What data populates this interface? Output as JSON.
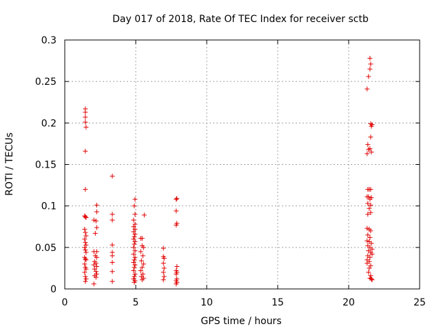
{
  "chart_data": {
    "type": "scatter",
    "title": "Day 017 of 2018, Rate Of TEC Index for receiver sctb",
    "xlabel": "GPS time / hours",
    "ylabel": "ROTI / TECUs",
    "xlim": [
      0,
      25
    ],
    "ylim": [
      0,
      0.3
    ],
    "xticks": [
      0,
      5,
      10,
      15,
      20,
      25
    ],
    "yticks": [
      0,
      0.05,
      0.1,
      0.15,
      0.2,
      0.25,
      0.3
    ],
    "xtick_labels": [
      "0",
      "5",
      "10",
      "15",
      "20",
      "25"
    ],
    "ytick_labels": [
      "0",
      "0.05",
      "0.1",
      "0.15",
      "0.2",
      "0.25",
      "0.3"
    ],
    "grid": true,
    "marker": "plus",
    "color": "#e00000",
    "series": [
      {
        "name": "ROTI",
        "points": [
          [
            1.45,
            0.217
          ],
          [
            1.45,
            0.213
          ],
          [
            1.45,
            0.207
          ],
          [
            1.45,
            0.201
          ],
          [
            1.5,
            0.195
          ],
          [
            1.45,
            0.166
          ],
          [
            1.45,
            0.12
          ],
          [
            1.4,
            0.088
          ],
          [
            1.45,
            0.087
          ],
          [
            1.5,
            0.086
          ],
          [
            1.4,
            0.072
          ],
          [
            1.45,
            0.068
          ],
          [
            1.5,
            0.064
          ],
          [
            1.4,
            0.06
          ],
          [
            1.45,
            0.056
          ],
          [
            1.5,
            0.053
          ],
          [
            1.4,
            0.05
          ],
          [
            1.45,
            0.047
          ],
          [
            1.5,
            0.044
          ],
          [
            1.4,
            0.038
          ],
          [
            1.45,
            0.036
          ],
          [
            1.5,
            0.035
          ],
          [
            1.4,
            0.03
          ],
          [
            1.45,
            0.026
          ],
          [
            1.5,
            0.024
          ],
          [
            1.4,
            0.02
          ],
          [
            1.45,
            0.015
          ],
          [
            1.5,
            0.012
          ],
          [
            1.45,
            0.009
          ],
          [
            2.25,
            0.101
          ],
          [
            2.25,
            0.093
          ],
          [
            2.05,
            0.083
          ],
          [
            2.2,
            0.082
          ],
          [
            2.25,
            0.074
          ],
          [
            2.15,
            0.067
          ],
          [
            2.05,
            0.045
          ],
          [
            2.25,
            0.045
          ],
          [
            2.15,
            0.04
          ],
          [
            2.25,
            0.038
          ],
          [
            2.1,
            0.033
          ],
          [
            2.2,
            0.031
          ],
          [
            2.05,
            0.029
          ],
          [
            2.25,
            0.027
          ],
          [
            2.1,
            0.024
          ],
          [
            2.2,
            0.021
          ],
          [
            2.25,
            0.018
          ],
          [
            2.1,
            0.016
          ],
          [
            2.2,
            0.014
          ],
          [
            2.05,
            0.006
          ],
          [
            3.35,
            0.136
          ],
          [
            3.35,
            0.09
          ],
          [
            3.35,
            0.083
          ],
          [
            3.35,
            0.053
          ],
          [
            3.35,
            0.044
          ],
          [
            3.35,
            0.04
          ],
          [
            3.35,
            0.032
          ],
          [
            3.35,
            0.021
          ],
          [
            3.35,
            0.009
          ],
          [
            4.95,
            0.108
          ],
          [
            4.9,
            0.1
          ],
          [
            4.95,
            0.09
          ],
          [
            4.85,
            0.083
          ],
          [
            4.95,
            0.078
          ],
          [
            4.85,
            0.075
          ],
          [
            4.95,
            0.072
          ],
          [
            4.85,
            0.069
          ],
          [
            4.95,
            0.066
          ],
          [
            4.9,
            0.063
          ],
          [
            4.85,
            0.06
          ],
          [
            4.95,
            0.057
          ],
          [
            4.9,
            0.054
          ],
          [
            4.85,
            0.05
          ],
          [
            4.95,
            0.046
          ],
          [
            4.85,
            0.042
          ],
          [
            4.95,
            0.038
          ],
          [
            4.9,
            0.035
          ],
          [
            4.85,
            0.032
          ],
          [
            4.95,
            0.029
          ],
          [
            4.9,
            0.026
          ],
          [
            4.85,
            0.022
          ],
          [
            4.95,
            0.018
          ],
          [
            4.9,
            0.015
          ],
          [
            4.85,
            0.012
          ],
          [
            4.95,
            0.01
          ],
          [
            4.9,
            0.008
          ],
          [
            5.45,
            0.061
          ],
          [
            5.35,
            0.061
          ],
          [
            5.6,
            0.089
          ],
          [
            5.45,
            0.052
          ],
          [
            5.55,
            0.05
          ],
          [
            5.35,
            0.045
          ],
          [
            5.5,
            0.04
          ],
          [
            5.4,
            0.034
          ],
          [
            5.55,
            0.03
          ],
          [
            5.45,
            0.026
          ],
          [
            5.35,
            0.022
          ],
          [
            5.5,
            0.018
          ],
          [
            5.4,
            0.015
          ],
          [
            5.55,
            0.013
          ],
          [
            5.45,
            0.011
          ],
          [
            6.95,
            0.049
          ],
          [
            6.95,
            0.039
          ],
          [
            7.0,
            0.037
          ],
          [
            6.95,
            0.031
          ],
          [
            7.0,
            0.025
          ],
          [
            6.95,
            0.02
          ],
          [
            7.0,
            0.015
          ],
          [
            6.95,
            0.011
          ],
          [
            7.9,
            0.109
          ],
          [
            7.85,
            0.108
          ],
          [
            7.85,
            0.094
          ],
          [
            7.9,
            0.079
          ],
          [
            7.85,
            0.077
          ],
          [
            7.9,
            0.027
          ],
          [
            7.85,
            0.022
          ],
          [
            7.9,
            0.02
          ],
          [
            7.85,
            0.018
          ],
          [
            7.9,
            0.012
          ],
          [
            7.85,
            0.01
          ],
          [
            7.9,
            0.008
          ],
          [
            7.85,
            0.006
          ],
          [
            21.5,
            0.278
          ],
          [
            21.55,
            0.271
          ],
          [
            21.5,
            0.265
          ],
          [
            21.4,
            0.256
          ],
          [
            21.3,
            0.241
          ],
          [
            21.55,
            0.199
          ],
          [
            21.65,
            0.198
          ],
          [
            21.6,
            0.196
          ],
          [
            21.55,
            0.183
          ],
          [
            21.35,
            0.174
          ],
          [
            21.4,
            0.168
          ],
          [
            21.3,
            0.163
          ],
          [
            21.6,
            0.165
          ],
          [
            21.5,
            0.169
          ],
          [
            21.35,
            0.12
          ],
          [
            21.55,
            0.12
          ],
          [
            21.45,
            0.12
          ],
          [
            21.3,
            0.111
          ],
          [
            21.4,
            0.111
          ],
          [
            21.5,
            0.108
          ],
          [
            21.6,
            0.11
          ],
          [
            21.35,
            0.103
          ],
          [
            21.55,
            0.101
          ],
          [
            21.45,
            0.097
          ],
          [
            21.35,
            0.09
          ],
          [
            21.55,
            0.092
          ],
          [
            21.3,
            0.073
          ],
          [
            21.45,
            0.072
          ],
          [
            21.55,
            0.07
          ],
          [
            21.35,
            0.065
          ],
          [
            21.5,
            0.062
          ],
          [
            21.3,
            0.058
          ],
          [
            21.45,
            0.057
          ],
          [
            21.6,
            0.055
          ],
          [
            21.35,
            0.052
          ],
          [
            21.5,
            0.05
          ],
          [
            21.65,
            0.048
          ],
          [
            21.4,
            0.046
          ],
          [
            21.55,
            0.044
          ],
          [
            21.65,
            0.042
          ],
          [
            21.35,
            0.04
          ],
          [
            21.5,
            0.038
          ],
          [
            21.3,
            0.035
          ],
          [
            21.45,
            0.033
          ],
          [
            21.3,
            0.031
          ],
          [
            21.55,
            0.028
          ],
          [
            21.45,
            0.025
          ],
          [
            21.4,
            0.02
          ],
          [
            21.55,
            0.016
          ],
          [
            21.5,
            0.013
          ],
          [
            21.6,
            0.012
          ],
          [
            21.65,
            0.011
          ]
        ]
      }
    ]
  }
}
